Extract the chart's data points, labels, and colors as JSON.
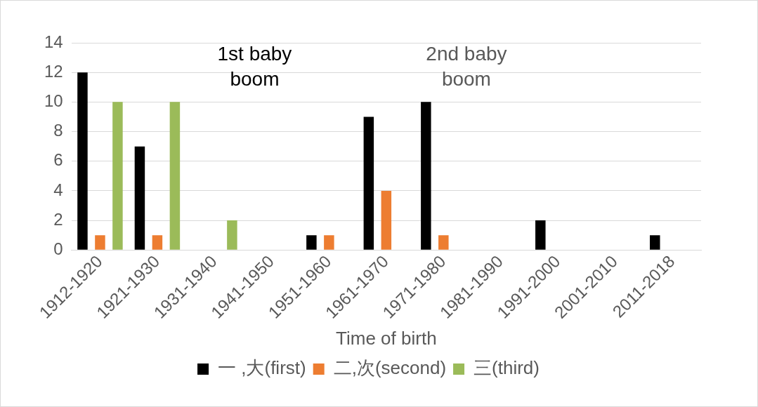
{
  "chart_data": {
    "type": "bar",
    "xlabel": "Time of birth",
    "categories": [
      "1912-1920",
      "1921-1930",
      "1931-1940",
      "1941-1950",
      "1951-1960",
      "1961-1970",
      "1971-1980",
      "1981-1990",
      "1991-2000",
      "2001-2010",
      "2011-2018"
    ],
    "series": [
      {
        "name": "一 ,大(first)",
        "color": "#000000",
        "values": [
          12,
          7,
          0,
          0,
          1,
          9,
          10,
          0,
          2,
          0,
          1
        ]
      },
      {
        "name": "二,次(second)",
        "color": "#ed7d31",
        "values": [
          1,
          1,
          0,
          0,
          1,
          4,
          1,
          0,
          0,
          0,
          0
        ]
      },
      {
        "name": "三(third)",
        "color": "#9bbb59",
        "values": [
          10,
          10,
          2,
          0,
          0,
          0,
          0,
          0,
          0,
          0,
          0
        ]
      }
    ],
    "ylim": [
      0,
      14
    ],
    "yticks": [
      0,
      2,
      4,
      6,
      8,
      10,
      12,
      14
    ],
    "grid": "y",
    "legend": "bottom",
    "annotations": [
      "1st baby boom",
      "2nd baby boom"
    ]
  }
}
